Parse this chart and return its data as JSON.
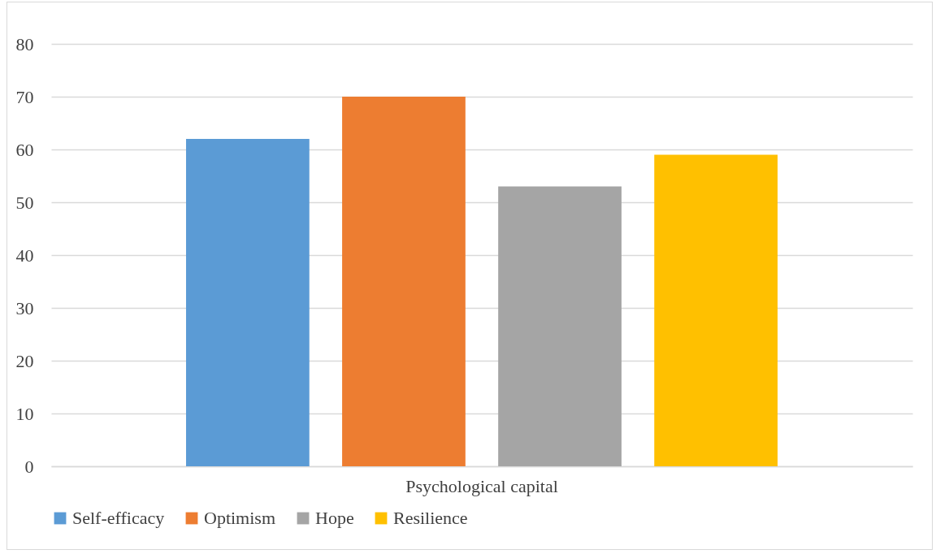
{
  "chart_data": {
    "type": "bar",
    "categories": [
      "Psychological capital"
    ],
    "series": [
      {
        "name": "Self-efficacy",
        "color": "#5b9bd5",
        "values": [
          62
        ]
      },
      {
        "name": "Optimism",
        "color": "#ed7d31",
        "values": [
          70
        ]
      },
      {
        "name": "Hope",
        "color": "#a5a5a5",
        "values": [
          53
        ]
      },
      {
        "name": "Resilience",
        "color": "#ffc000",
        "values": [
          59
        ]
      }
    ],
    "ylim": [
      0,
      80
    ],
    "yticks": [
      0,
      10,
      20,
      30,
      40,
      50,
      60,
      70,
      80
    ],
    "grid": "y",
    "legend": "bottom"
  }
}
